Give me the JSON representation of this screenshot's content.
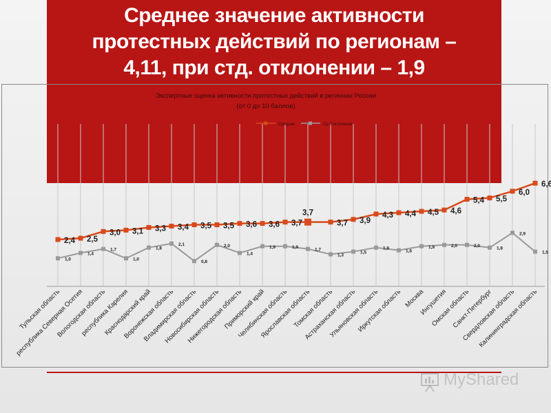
{
  "slide": {
    "title_lines": [
      "Среднее значение активности",
      "протестных действий по регионам –",
      "4,11, при стд. отклонении – 1,9"
    ]
  },
  "watermark": {
    "text": "MyShared",
    "icon": "presentation-board-icon"
  },
  "chart_data": {
    "type": "line",
    "title": "Экспертные оценка активности протестных действий в регионах России",
    "subtitle": "(от 0 до 10 баллов)",
    "categories": [
      "Тульская область",
      "республика Северная Осетия",
      "Вологодская область",
      "республика Карелия",
      "Краснодарский край",
      "Воронежская область",
      "Владимирская область",
      "Новосибирская область",
      "Нижегородская область",
      "Приморский край",
      "Челябинская область",
      "Ярославская область",
      "Томская область",
      "Астраханская область",
      "Ульяновская область",
      "Иркутская область",
      "Москва",
      "Ингушетия",
      "Омская область",
      "Санкт-Петербург",
      "Свердловская область",
      "Калининградская область"
    ],
    "series": [
      {
        "name": "Среднее",
        "color": "#d84a1b",
        "values": [
          2.4,
          2.5,
          3.0,
          3.1,
          3.3,
          3.4,
          3.5,
          3.5,
          3.6,
          3.6,
          3.7,
          3.7,
          3.7,
          3.9,
          4.3,
          4.4,
          4.5,
          4.6,
          5.4,
          5.5,
          6.0,
          6.6
        ],
        "labels": [
          "2,4",
          "2,5",
          "3,0",
          "3,1",
          "3,3",
          "3,4",
          "3,5",
          "3,5",
          "3,6",
          "3,6",
          "3,7",
          "3,7",
          "3,7",
          "3,9",
          "4,3",
          "4,4",
          "4,5",
          "4,6",
          "5,4",
          "5,5",
          "6,0",
          "6,6"
        ]
      },
      {
        "name": "Ср.Отклонение",
        "color": "#9a9a9a",
        "values": [
          1.0,
          1.4,
          1.7,
          1.0,
          1.8,
          2.1,
          0.8,
          2.0,
          1.4,
          1.9,
          1.9,
          1.7,
          1.3,
          1.5,
          1.8,
          1.6,
          1.9,
          2.0,
          2.0,
          1.8,
          2.9,
          1.5
        ],
        "labels": [
          "1,0",
          "1,4",
          "1,7",
          "1,0",
          "1,8",
          "2,1",
          "0,8",
          "2,0",
          "1,4",
          "1,9",
          "1,9",
          "1,7",
          "1,3",
          "1,5",
          "1,8",
          "1,6",
          "1,9",
          "2,0",
          "2,0",
          "1,8",
          "2,9",
          "1,5"
        ]
      }
    ],
    "legend_position": "top"
  }
}
